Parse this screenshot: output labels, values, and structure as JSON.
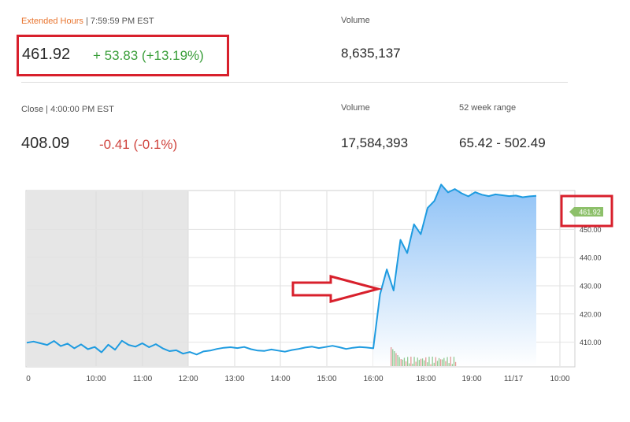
{
  "extended": {
    "label": "Extended Hours",
    "time": "| 7:59:59 PM EST",
    "price": "461.92",
    "change": "+ 53.83 (+13.19%)",
    "volume_label": "Volume",
    "volume": "8,635,137"
  },
  "close": {
    "label": "Close | 4:00:00 PM EST",
    "price": "408.09",
    "change": "-0.41 (-0.1%)",
    "volume_label": "Volume",
    "volume": "17,584,393",
    "range_label": "52 week range",
    "range": "65.42 - 502.49"
  },
  "colors": {
    "line": "#1e9be0",
    "area_top": "#8fc2f6",
    "premarket_shade": "#e6e6e6",
    "highlight": "#d8202c",
    "up": "#3a9e3a",
    "down": "#d0453f",
    "price_tag": "#8dc06a"
  },
  "chart_data": {
    "type": "area",
    "title": "",
    "xlabel": "",
    "ylabel": "",
    "x_ticks": [
      "0",
      "10:00",
      "11:00",
      "12:00",
      "13:00",
      "14:00",
      "15:00",
      "16:00",
      "18:00",
      "19:00",
      "11/17",
      "10:00"
    ],
    "y_ticks": [
      410,
      420,
      430,
      440,
      450
    ],
    "y_tick_labels": [
      "410.00",
      "420.00",
      "430.00",
      "440.00",
      "450.00"
    ],
    "ylim": [
      401.5,
      463.5
    ],
    "last_price_tag": "461.92",
    "series": [
      {
        "values": [
          409.8,
          410.2,
          409.6,
          409.0,
          410.4,
          408.6,
          409.5,
          407.8,
          409.2,
          407.5,
          408.3,
          406.4,
          409.1,
          407.3,
          410.5,
          409.0,
          408.4,
          409.6,
          408.2,
          409.3,
          407.8,
          406.8,
          407.1,
          405.9,
          406.5,
          405.6,
          406.7,
          407.0,
          407.6,
          408.0,
          408.2,
          407.9,
          408.3,
          407.5,
          407.0,
          406.9,
          407.4,
          407.0,
          406.6,
          407.2,
          407.6,
          408.1,
          408.4,
          407.9,
          408.3,
          408.7,
          408.2,
          407.6,
          408.0,
          408.3,
          408.09,
          407.8,
          427.0,
          435.8,
          428.3,
          446.3,
          441.6,
          451.8,
          448.3,
          457.6,
          460.1,
          465.9,
          463.1,
          464.3,
          462.8,
          461.7,
          463.2,
          462.3,
          461.8,
          462.4,
          462.1,
          461.8,
          462.0,
          461.4,
          461.7,
          461.92
        ]
      }
    ]
  }
}
